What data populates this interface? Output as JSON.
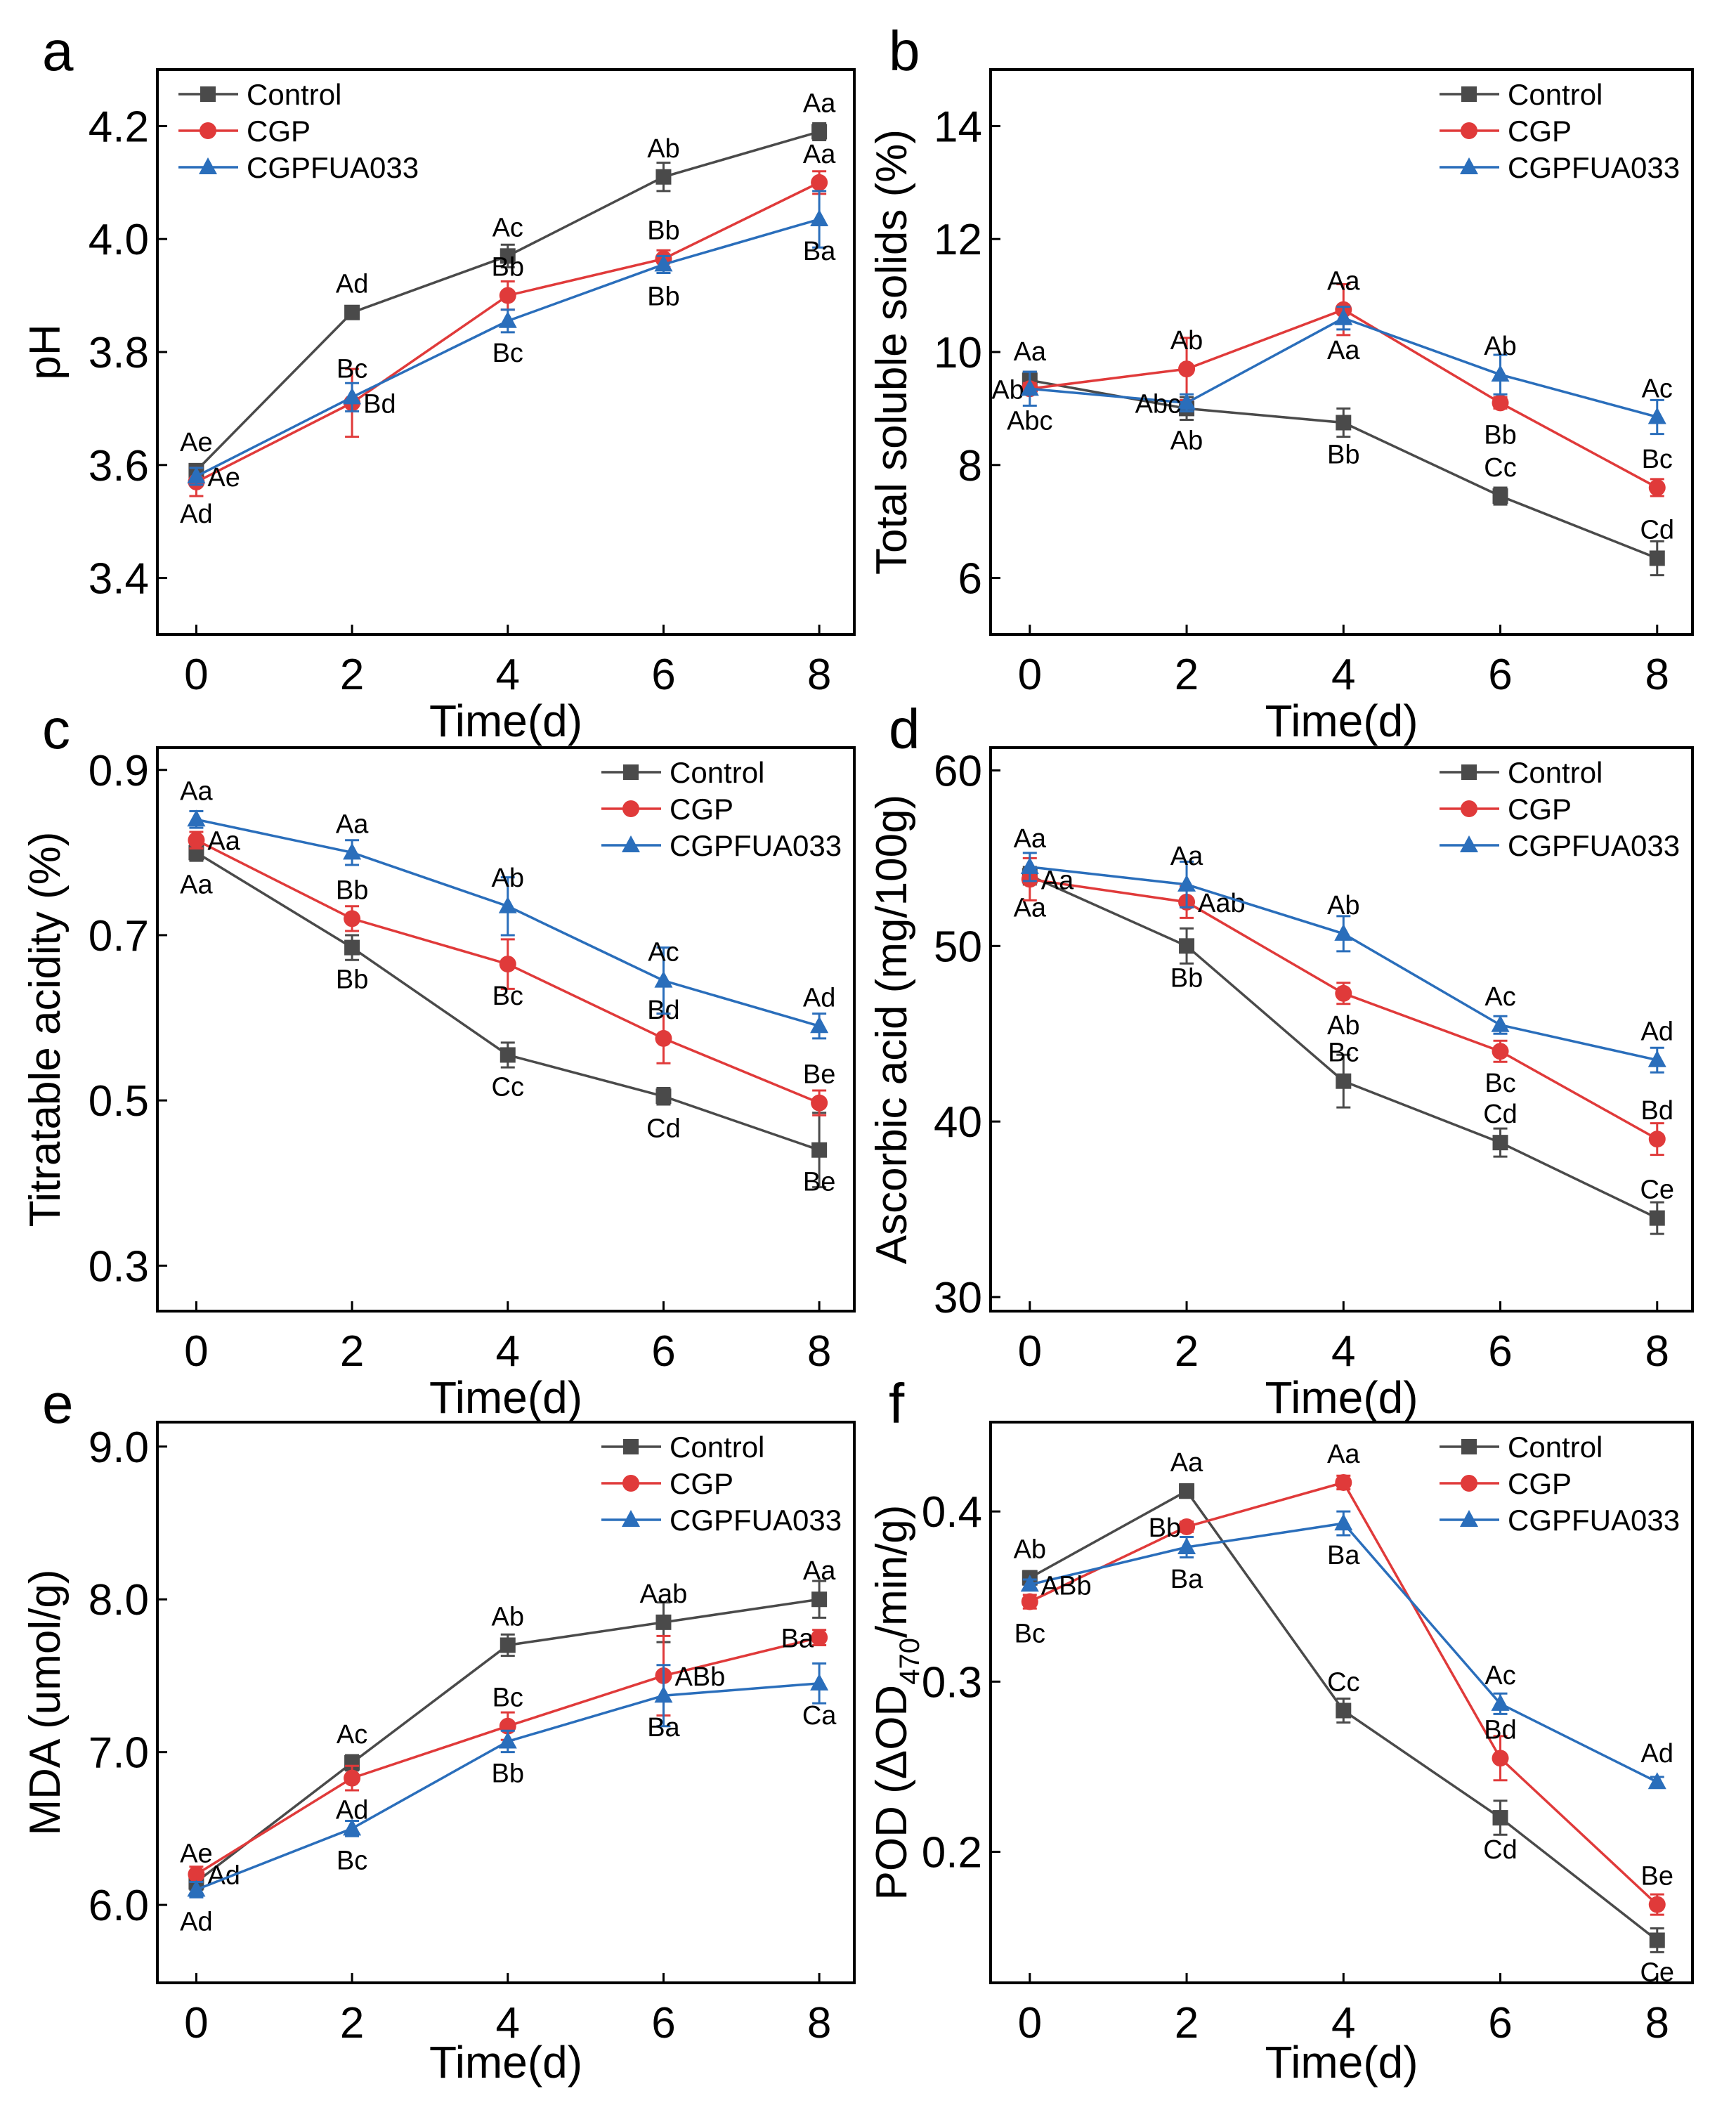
{
  "series_colors": {
    "Control": "#4a4a4a",
    "CGP": "#e03a3a",
    "CGPFUA033": "#2a6ebb"
  },
  "chart_data": [
    {
      "type": "line",
      "panel": "a",
      "xlabel": "",
      "ylabel": "pH",
      "x": [
        0,
        2,
        4,
        6,
        8
      ],
      "xlim": [
        -0.5,
        8.45
      ],
      "ylim": [
        3.3,
        4.3
      ],
      "yticks": [
        "3.4",
        "3.6",
        "3.8",
        "4.0",
        "4.2"
      ],
      "xticks": [
        "0",
        "2",
        "4",
        "6",
        "8"
      ],
      "legend": "top-left",
      "series": [
        {
          "name": "Control",
          "marker": "square",
          "values": [
            3.59,
            3.87,
            3.97,
            4.11,
            4.19
          ],
          "errors": [
            0.01,
            0.01,
            0.02,
            0.025,
            0.015
          ],
          "labels": [
            "Ae",
            "Ad",
            "Ac",
            "Ab",
            "Aa"
          ]
        },
        {
          "name": "CGP",
          "marker": "circle",
          "values": [
            3.57,
            3.71,
            3.9,
            3.965,
            4.1
          ],
          "errors": [
            0.025,
            0.06,
            0.025,
            0.015,
            0.02
          ],
          "labels": [
            "Ad",
            "Bd",
            "Bb",
            "Bb",
            "Aa"
          ]
        },
        {
          "name": "CGPFUA033",
          "marker": "triangle",
          "values": [
            3.58,
            3.72,
            3.855,
            3.955,
            4.035
          ],
          "errors": [
            0.015,
            0.025,
            0.02,
            0.015,
            0.05
          ],
          "labels": [
            "Ae",
            "Bc",
            "Bc",
            "Bb",
            "Ba"
          ]
        }
      ]
    },
    {
      "type": "line",
      "panel": "b",
      "xlabel": "Time(d)",
      "ylabel": "Total soluble solids (%)",
      "x": [
        0,
        2,
        4,
        6,
        8
      ],
      "xlim": [
        -0.5,
        8.45
      ],
      "ylim": [
        5,
        15
      ],
      "yticks": [
        "6",
        "8",
        "10",
        "12",
        "14"
      ],
      "xticks": [
        "0",
        "2",
        "4",
        "6",
        "8"
      ],
      "legend": "top-right",
      "series": [
        {
          "name": "Control",
          "marker": "square",
          "values": [
            9.5,
            9.0,
            8.75,
            7.45,
            6.35
          ],
          "errors": [
            0.15,
            0.2,
            0.25,
            0.15,
            0.3
          ],
          "labels": [
            "Aa",
            "Ab",
            "Bb",
            "Cc",
            "Cd"
          ]
        },
        {
          "name": "CGP",
          "marker": "circle",
          "values": [
            9.35,
            9.7,
            10.75,
            9.1,
            7.6
          ],
          "errors": [
            0.1,
            0.55,
            0.45,
            0.1,
            0.15
          ],
          "labels": [
            "Ab",
            "Ab",
            "Aa",
            "Bb",
            "Bc"
          ]
        },
        {
          "name": "CGPFUA033",
          "marker": "triangle",
          "values": [
            9.35,
            9.1,
            10.6,
            9.6,
            8.85
          ],
          "errors": [
            0.3,
            0.15,
            0.2,
            0.35,
            0.3
          ],
          "labels": [
            "Abc",
            "Abc",
            "Aa",
            "Ab",
            "Ac"
          ]
        }
      ]
    },
    {
      "type": "line",
      "panel": "c",
      "xlabel": "Time(d)",
      "ylabel": "Titratable acidity (%)",
      "x": [
        0,
        2,
        4,
        6,
        8
      ],
      "xlim": [
        -0.5,
        8.45
      ],
      "ylim": [
        0.245,
        0.927
      ],
      "yticks": [
        "0.3",
        "0.5",
        "0.7",
        "0.9"
      ],
      "xticks": [
        "0",
        "2",
        "4",
        "6",
        "8"
      ],
      "legend": "top-right",
      "series": [
        {
          "name": "Control",
          "marker": "square",
          "values": [
            0.8,
            0.685,
            0.555,
            0.505,
            0.44
          ],
          "errors": [
            0.01,
            0.015,
            0.015,
            0.01,
            0.045
          ],
          "labels": [
            "Aa",
            "Bb",
            "Cc",
            "Cd",
            "Be"
          ]
        },
        {
          "name": "CGP",
          "marker": "circle",
          "values": [
            0.815,
            0.72,
            0.665,
            0.575,
            0.497
          ],
          "errors": [
            0.01,
            0.015,
            0.03,
            0.03,
            0.015
          ],
          "labels": [
            "Aa",
            "Bb",
            "Bc",
            "Bd",
            "Be"
          ]
        },
        {
          "name": "CGPFUA033",
          "marker": "triangle",
          "values": [
            0.84,
            0.8,
            0.735,
            0.645,
            0.59
          ],
          "errors": [
            0.01,
            0.015,
            0.035,
            0.04,
            0.015
          ],
          "labels": [
            "Aa",
            "Aa",
            "Ab",
            "Ac",
            "Ad"
          ]
        }
      ]
    },
    {
      "type": "line",
      "panel": "d",
      "xlabel": "Time(d)",
      "ylabel": "Ascorbic acid (mg/100g)",
      "x": [
        0,
        2,
        4,
        6,
        8
      ],
      "xlim": [
        -0.5,
        8.45
      ],
      "ylim": [
        29.2,
        61.3
      ],
      "yticks": [
        "30",
        "40",
        "50",
        "60"
      ],
      "xticks": [
        "0",
        "2",
        "4",
        "6",
        "8"
      ],
      "legend": "top-right",
      "series": [
        {
          "name": "Control",
          "marker": "square",
          "values": [
            54.0,
            50.0,
            42.3,
            38.8,
            34.5
          ],
          "errors": [
            0.5,
            1.0,
            1.5,
            0.8,
            0.9
          ],
          "labels": [
            "Aa",
            "Bb",
            "Bc",
            "Cd",
            "Ce"
          ]
        },
        {
          "name": "CGP",
          "marker": "circle",
          "values": [
            53.8,
            52.5,
            47.3,
            44.0,
            39.0
          ],
          "errors": [
            1.2,
            0.9,
            0.6,
            0.6,
            0.9
          ],
          "labels": [
            "Aa",
            "Aab",
            "Ab",
            "Bc",
            "Bd"
          ]
        },
        {
          "name": "CGPFUA033",
          "marker": "triangle",
          "values": [
            54.5,
            53.5,
            50.7,
            45.5,
            43.5
          ],
          "errors": [
            0.8,
            1.3,
            1.0,
            0.5,
            0.7
          ],
          "labels": [
            "Aa",
            "Aa",
            "Ab",
            "Ac",
            "Ad"
          ]
        }
      ]
    },
    {
      "type": "line",
      "panel": "e",
      "xlabel": "Time(d)",
      "ylabel": "MDA (umol/g)",
      "x": [
        0,
        2,
        4,
        6,
        8
      ],
      "xlim": [
        -0.5,
        8.45
      ],
      "ylim": [
        5.49,
        9.16
      ],
      "yticks": [
        "6.0",
        "7.0",
        "8.0",
        "9.0"
      ],
      "xticks": [
        "0",
        "2",
        "4",
        "6",
        "8"
      ],
      "legend": "top-right",
      "series": [
        {
          "name": "Control",
          "marker": "square",
          "values": [
            6.15,
            6.93,
            7.7,
            7.85,
            8.0
          ],
          "errors": [
            0.05,
            0.05,
            0.07,
            0.13,
            0.12
          ],
          "labels": [
            "Ae",
            "Ac",
            "Ab",
            "Aab",
            "Aa"
          ]
        },
        {
          "name": "CGP",
          "marker": "circle",
          "values": [
            6.2,
            6.83,
            7.17,
            7.5,
            7.75
          ],
          "errors": [
            0.05,
            0.08,
            0.09,
            0.26,
            0.05
          ],
          "labels": [
            "Ad",
            "Ad",
            "Bc",
            "ABb",
            "Ba"
          ]
        },
        {
          "name": "CGPFUA033",
          "marker": "triangle",
          "values": [
            6.1,
            6.5,
            7.07,
            7.37,
            7.45
          ],
          "errors": [
            0.05,
            0.05,
            0.07,
            0.2,
            0.13
          ],
          "labels": [
            "Ad",
            "Bc",
            "Bb",
            "Ba",
            "Ca"
          ]
        }
      ]
    },
    {
      "type": "line",
      "panel": "f",
      "xlabel": "Time(d)",
      "ylabel_parts": [
        "POD (ΔOD",
        "470",
        "/min/g)"
      ],
      "x": [
        0,
        2,
        4,
        6,
        8
      ],
      "xlim": [
        -0.5,
        8.45
      ],
      "ylim": [
        0.123,
        0.4525
      ],
      "yticks": [
        "0.2",
        "0.3",
        "0.4"
      ],
      "xticks": [
        "0",
        "2",
        "4",
        "6",
        "8"
      ],
      "legend": "top-right",
      "series": [
        {
          "name": "Control",
          "marker": "square",
          "values": [
            0.361,
            0.412,
            0.283,
            0.22,
            0.148
          ],
          "errors": [
            0.004,
            0.004,
            0.007,
            0.01,
            0.007
          ],
          "labels": [
            "Ab",
            "Aa",
            "Cc",
            "Cd",
            "Ce"
          ]
        },
        {
          "name": "CGP",
          "marker": "circle",
          "values": [
            0.347,
            0.391,
            0.417,
            0.255,
            0.169
          ],
          "errors": [
            0.004,
            0.003,
            0.004,
            0.013,
            0.006
          ],
          "labels": [
            "Bc",
            "Bb",
            "Aa",
            "Bd",
            "Be"
          ]
        },
        {
          "name": "CGPFUA033",
          "marker": "triangle",
          "values": [
            0.357,
            0.379,
            0.393,
            0.287,
            0.241
          ],
          "errors": [
            0.003,
            0.006,
            0.007,
            0.006,
            0.003
          ],
          "labels": [
            "ABb",
            "Ba",
            "Ba",
            "Ac",
            "Ad"
          ]
        }
      ]
    }
  ],
  "bottom_xlabel": "Time(d)"
}
